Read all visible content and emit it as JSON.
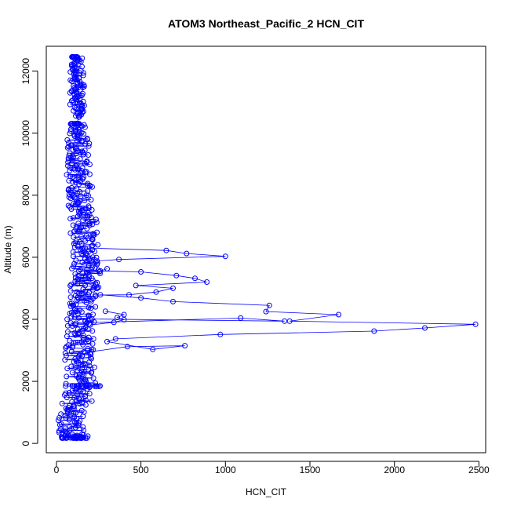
{
  "chart_data": {
    "type": "line",
    "title": "ATOM3 Northeast_Pacific_2 HCN_CIT",
    "xlabel": "HCN_CIT",
    "ylabel": "Altitude (m)",
    "xlim": [
      -60,
      2540
    ],
    "ylim": [
      -300,
      12800
    ],
    "xticks": [
      0,
      500,
      1000,
      1500,
      2000,
      2500
    ],
    "yticks": [
      0,
      2000,
      4000,
      6000,
      8000,
      10000,
      12000
    ],
    "colors": {
      "series": "#0000ff"
    },
    "marker": "open-circle",
    "grid": false,
    "series": [
      {
        "outlier_excursions": [
          [
            [
              140,
              180
            ],
            [
              120,
              160
            ],
            [
              100,
              170
            ],
            [
              150,
              190
            ],
            [
              180,
              170
            ],
            [
              130,
              180
            ]
          ],
          [
            [
              170,
              2930
            ],
            [
              420,
              3120
            ],
            [
              760,
              3150
            ],
            [
              570,
              3030
            ],
            [
              300,
              3280
            ],
            [
              350,
              3370
            ],
            [
              970,
              3510
            ],
            [
              1880,
              3620
            ],
            [
              2180,
              3720
            ],
            [
              2480,
              3840
            ],
            [
              1380,
              3940
            ],
            [
              1670,
              4150
            ],
            [
              1240,
              4250
            ],
            [
              1260,
              4450
            ],
            [
              690,
              4570
            ],
            [
              500,
              4690
            ],
            [
              260,
              4790
            ]
          ],
          [
            [
              200,
              3820
            ],
            [
              340,
              3900
            ],
            [
              400,
              3990
            ],
            [
              360,
              4060
            ],
            [
              400,
              4150
            ],
            [
              290,
              4260
            ]
          ],
          [
            [
              180,
              3890
            ],
            [
              1090,
              4040
            ],
            [
              1350,
              3940
            ],
            [
              210,
              4010
            ]
          ],
          [
            [
              230,
              4780
            ],
            [
              430,
              4790
            ],
            [
              590,
              4880
            ],
            [
              690,
              5000
            ],
            [
              470,
              5090
            ],
            [
              890,
              5200
            ],
            [
              820,
              5320
            ],
            [
              710,
              5410
            ],
            [
              500,
              5530
            ],
            [
              260,
              5560
            ],
            [
              300,
              5630
            ]
          ],
          [
            [
              170,
              6300
            ],
            [
              650,
              6220
            ],
            [
              770,
              6120
            ],
            [
              1000,
              6030
            ],
            [
              370,
              5930
            ],
            [
              240,
              5880
            ]
          ],
          [
            [
              240,
              5030
            ],
            [
              150,
              5250
            ],
            [
              180,
              5600
            ]
          ]
        ],
        "column_bands": [
          [
            12450,
            12450,
            85,
            125
          ],
          [
            12000,
            12450,
            90,
            155
          ],
          [
            10500,
            12000,
            80,
            165
          ],
          [
            10300,
            10300,
            80,
            135
          ],
          [
            9900,
            10300,
            75,
            170
          ],
          [
            8500,
            9900,
            60,
            200
          ],
          [
            7400,
            8500,
            70,
            215
          ],
          [
            6500,
            7400,
            80,
            240
          ],
          [
            5800,
            6500,
            90,
            250
          ],
          [
            4800,
            5800,
            80,
            270
          ],
          [
            4300,
            4800,
            80,
            250
          ],
          [
            3500,
            4300,
            60,
            230
          ],
          [
            2800,
            3500,
            45,
            225
          ],
          [
            1900,
            2800,
            50,
            235
          ],
          [
            1850,
            1850,
            80,
            265
          ],
          [
            1300,
            1850,
            40,
            220
          ],
          [
            1000,
            1300,
            20,
            180
          ],
          [
            600,
            1000,
            10,
            170
          ],
          [
            300,
            600,
            15,
            165
          ],
          [
            180,
            300,
            25,
            200
          ],
          [
            180,
            180,
            30,
            180
          ]
        ]
      }
    ]
  }
}
